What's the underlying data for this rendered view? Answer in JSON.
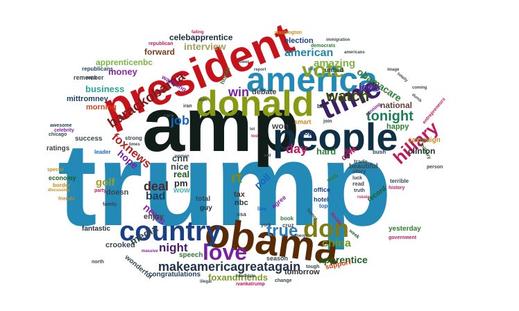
{
  "words": [
    {
      "text": "trump",
      "color": "#2389b7"
    },
    {
      "text": "amp",
      "color": "#111d18"
    },
    {
      "text": "president",
      "color": "#c8121b"
    },
    {
      "text": "donald",
      "color": "#879a11"
    },
    {
      "text": "people",
      "color": "#0f2f44"
    },
    {
      "text": "america",
      "color": "#2389b7"
    },
    {
      "text": "obama",
      "color": "#5a2a04"
    },
    {
      "text": "time",
      "color": "#3d1f64"
    },
    {
      "text": "country",
      "color": "#1b3f84"
    },
    {
      "text": "vote",
      "color": "#87a321"
    },
    {
      "text": "don",
      "color": "#7f7a12"
    },
    {
      "text": "love",
      "color": "#7b1fa2"
    },
    {
      "text": "tonight",
      "color": "#1a7f56"
    },
    {
      "text": "hillary",
      "color": "#c2185b"
    },
    {
      "text": "barackobama",
      "color": "#7a1c1c"
    },
    {
      "text": "true",
      "color": "#2f7dbd"
    },
    {
      "text": "watch",
      "color": "#394b0b"
    },
    {
      "text": "rt",
      "color": "#7f8a17"
    },
    {
      "text": "makeamericagreatagain",
      "color": "#20334a"
    },
    {
      "text": "foxnews",
      "color": "#b22222"
    },
    {
      "text": "american",
      "color": "#1e88a8"
    },
    {
      "text": "china",
      "color": "#6a9a1b"
    },
    {
      "text": "win",
      "color": "#7b1fa2"
    },
    {
      "text": "day",
      "color": "#c2185b"
    },
    {
      "text": "deal",
      "color": "#4a2a2a"
    },
    {
      "text": "bad",
      "color": "#1b3f5a"
    },
    {
      "text": "night",
      "color": "#4a1a6a"
    },
    {
      "text": "news",
      "color": "#8e24aa"
    },
    {
      "text": "job",
      "color": "#1565c0"
    },
    {
      "text": "obamacare",
      "color": "#2e7d32"
    },
    {
      "text": "jobs",
      "color": "#6a1b9a"
    },
    {
      "text": "apprentice",
      "color": "#1b5e20"
    },
    {
      "text": "media",
      "color": "#37474f"
    },
    {
      "text": "amazing",
      "color": "#7cb342"
    },
    {
      "text": "interview",
      "color": "#a0a060"
    },
    {
      "text": "celebapprentice",
      "color": "#1b2c3a"
    },
    {
      "text": "forward",
      "color": "#7a3a1a"
    },
    {
      "text": "business",
      "color": "#26a69a"
    },
    {
      "text": "money",
      "color": "#8e24aa"
    },
    {
      "text": "apprenticenbc",
      "color": "#7cb342"
    },
    {
      "text": "national",
      "color": "#5d4037"
    },
    {
      "text": "debate",
      "color": "#424242"
    },
    {
      "text": "golf",
      "color": "#9e9d24"
    },
    {
      "text": "cnn",
      "color": "#37474f"
    },
    {
      "text": "nice",
      "color": "#37474f"
    },
    {
      "text": "real",
      "color": "#1b5e20"
    },
    {
      "text": "pm",
      "color": "#263238"
    },
    {
      "text": "wow",
      "color": "#4db6ac"
    },
    {
      "text": "hope",
      "color": "#7b1fa2"
    },
    {
      "text": "foxandfriends",
      "color": "#7a9a2a"
    },
    {
      "text": "won",
      "color": "#424242"
    },
    {
      "text": "hard",
      "color": "#2e7d32"
    },
    {
      "text": "clinton",
      "color": "#263238"
    },
    {
      "text": "cont",
      "color": "#c2185b"
    },
    {
      "text": "happy",
      "color": "#2e7d32"
    },
    {
      "text": "poll",
      "color": "#1565c0"
    },
    {
      "text": "tax",
      "color": "#4e342e"
    },
    {
      "text": "nbc",
      "color": "#263238"
    },
    {
      "text": "doesn",
      "color": "#37474f"
    },
    {
      "text": "enjoy",
      "color": "#424242"
    },
    {
      "text": "crooked",
      "color": "#37474f"
    },
    {
      "text": "tomorrow",
      "color": "#2e2e2e"
    },
    {
      "text": "congratulations",
      "color": "#1b3f5a"
    },
    {
      "text": "election",
      "color": "#1b3f84"
    },
    {
      "text": "beautiful",
      "color": "#424242"
    },
    {
      "text": "mittromney",
      "color": "#1b3f5a"
    },
    {
      "text": "morning",
      "color": "#d84315"
    },
    {
      "text": "success",
      "color": "#37474f"
    },
    {
      "text": "ratings",
      "color": "#424242"
    },
    {
      "text": "economy",
      "color": "#1b5e20"
    },
    {
      "text": "fantastic",
      "color": "#263238"
    },
    {
      "text": "wonderful",
      "color": "#37474f"
    },
    {
      "text": "speech",
      "color": "#2e7d32"
    },
    {
      "text": "season",
      "color": "#37474f"
    },
    {
      "text": "yesterday",
      "color": "#2e7d32"
    },
    {
      "text": "support",
      "color": "#d84315"
    },
    {
      "text": "campaign",
      "color": "#c98a1a"
    },
    {
      "text": "record",
      "color": "#1b5e20"
    },
    {
      "text": "hotel",
      "color": "#1b3f84"
    },
    {
      "text": "office",
      "color": "#1b3f84"
    },
    {
      "text": "total",
      "color": "#37474f"
    },
    {
      "text": "guy",
      "color": "#263238"
    },
    {
      "text": "remember",
      "color": "#37474f"
    },
    {
      "text": "republicans",
      "color": "#1b3f5a"
    },
    {
      "text": "smart",
      "color": "#c98a1a"
    },
    {
      "text": "united",
      "color": "#1b3f5a"
    },
    {
      "text": "gop",
      "color": "#1b3f84"
    },
    {
      "text": "watching",
      "color": "#7b1fa2"
    },
    {
      "text": "house",
      "color": "#2e7d32"
    },
    {
      "text": "strong",
      "color": "#37474f"
    },
    {
      "text": "leader",
      "color": "#1565c0"
    },
    {
      "text": "border",
      "color": "#c98a1a"
    },
    {
      "text": "north",
      "color": "#37474f"
    },
    {
      "text": "bush",
      "color": "#1b3f5a"
    },
    {
      "text": "trade",
      "color": "#37474f"
    },
    {
      "text": "story",
      "color": "#37474f"
    },
    {
      "text": "read",
      "color": "#37474f"
    },
    {
      "text": "terrible",
      "color": "#37474f"
    },
    {
      "text": "history",
      "color": "#c2185b"
    },
    {
      "text": "government",
      "color": "#c2185b"
    },
    {
      "text": "ivankatrump",
      "color": "#c2185b"
    },
    {
      "text": "change",
      "color": "#37474f"
    },
    {
      "text": "tough",
      "color": "#37474f"
    },
    {
      "text": "book",
      "color": "#2e7d32"
    },
    {
      "text": "cruz",
      "color": "#37474f"
    },
    {
      "text": "agree",
      "color": "#7b1fa2"
    },
    {
      "text": "usa",
      "color": "#37474f"
    },
    {
      "text": "live",
      "color": "#1565c0"
    },
    {
      "text": "york",
      "color": "#37474f"
    },
    {
      "text": "walk",
      "color": "#2e7d32"
    },
    {
      "text": "top",
      "color": "#1565c0"
    },
    {
      "text": "fake",
      "color": "#c2185b"
    },
    {
      "text": "luck",
      "color": "#37474f"
    },
    {
      "text": "truth",
      "color": "#37474f"
    },
    {
      "text": "week",
      "color": "#1b5e20"
    },
    {
      "text": "family",
      "color": "#37474f"
    },
    {
      "text": "party",
      "color": "#c2185b"
    },
    {
      "text": "friends",
      "color": "#c98a1a"
    },
    {
      "text": "special",
      "color": "#c98a1a"
    },
    {
      "text": "discussing",
      "color": "#c98a1a"
    },
    {
      "text": "chicago",
      "color": "#37474f"
    },
    {
      "text": "celebrity",
      "color": "#7b1fa2"
    },
    {
      "text": "awesome",
      "color": "#1b3f5a"
    },
    {
      "text": "washington",
      "color": "#c98a1a"
    },
    {
      "text": "democrats",
      "color": "#2e7d32"
    },
    {
      "text": "immigration",
      "color": "#37474f"
    },
    {
      "text": "americans",
      "color": "#37474f"
    },
    {
      "text": "republican",
      "color": "#c2185b"
    },
    {
      "text": "iran",
      "color": "#37474f"
    },
    {
      "text": "care",
      "color": "#37474f"
    },
    {
      "text": "bill",
      "color": "#263238"
    },
    {
      "text": "join",
      "color": "#37474f"
    },
    {
      "text": "running",
      "color": "#7b1fa2"
    },
    {
      "text": "military",
      "color": "#1b5e20"
    },
    {
      "text": "person",
      "color": "#37474f"
    },
    {
      "text": "women",
      "color": "#37474f"
    },
    {
      "text": "candidate",
      "color": "#37474f"
    },
    {
      "text": "illegal",
      "color": "#37474f"
    },
    {
      "text": "massive",
      "color": "#7b1fa2"
    },
    {
      "text": "energy",
      "color": "#37474f"
    },
    {
      "text": "report",
      "color": "#37474f"
    },
    {
      "text": "pay",
      "color": "#1565c0"
    },
    {
      "text": "major",
      "color": "#37474f"
    },
    {
      "text": "tower",
      "color": "#37474f"
    },
    {
      "text": "falling",
      "color": "#c2185b"
    },
    {
      "text": "sad",
      "color": "#37474f"
    },
    {
      "text": "lot",
      "color": "#37474f"
    },
    {
      "text": "lost",
      "color": "#c2185b"
    },
    {
      "text": "image",
      "color": "#37474f"
    },
    {
      "text": "russia",
      "color": "#c2185b"
    },
    {
      "text": "florida",
      "color": "#c2185b"
    },
    {
      "text": "honor",
      "color": "#37474f"
    },
    {
      "text": "times",
      "color": "#37474f"
    },
    {
      "text": "totally",
      "color": "#37474f"
    },
    {
      "text": "called",
      "color": "#37474f"
    },
    {
      "text": "entrepreneurs",
      "color": "#c2185b"
    },
    {
      "text": "coming",
      "color": "#37474f"
    },
    {
      "text": "dumb",
      "color": "#37474f"
    },
    {
      "text": "didn",
      "color": "#37474f"
    }
  ]
}
